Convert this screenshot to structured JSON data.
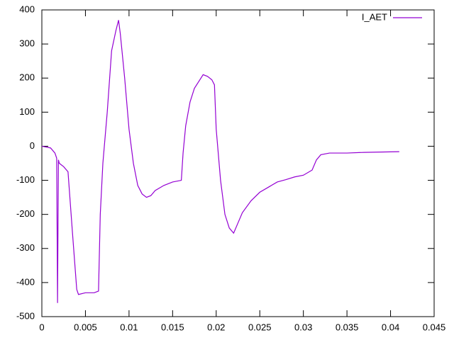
{
  "chart_data": {
    "type": "line",
    "x": [
      0,
      0.001,
      0.0015,
      0.0017,
      0.0018,
      0.0019,
      0.002,
      0.0025,
      0.003,
      0.0035,
      0.004,
      0.0042,
      0.005,
      0.006,
      0.0065,
      0.0067,
      0.007,
      0.0075,
      0.008,
      0.0085,
      0.0088,
      0.009,
      0.0095,
      0.01,
      0.0105,
      0.011,
      0.0115,
      0.012,
      0.0125,
      0.013,
      0.014,
      0.015,
      0.016,
      0.0162,
      0.0165,
      0.017,
      0.0175,
      0.018,
      0.0185,
      0.019,
      0.0195,
      0.0198,
      0.02,
      0.0205,
      0.021,
      0.0215,
      0.022,
      0.0225,
      0.023,
      0.024,
      0.025,
      0.026,
      0.027,
      0.028,
      0.029,
      0.03,
      0.031,
      0.0315,
      0.032,
      0.033,
      0.035,
      0.037,
      0.039,
      0.041
    ],
    "series": [
      {
        "name": "I_AET",
        "color": "#9400d3",
        "values": [
          0,
          -5,
          -20,
          -35,
          -460,
          -40,
          -50,
          -60,
          -75,
          -250,
          -420,
          -435,
          -430,
          -430,
          -425,
          -200,
          -50,
          100,
          280,
          340,
          370,
          330,
          200,
          50,
          -50,
          -115,
          -140,
          -150,
          -145,
          -130,
          -115,
          -105,
          -100,
          -20,
          60,
          130,
          170,
          190,
          210,
          205,
          195,
          180,
          50,
          -100,
          -200,
          -240,
          -255,
          -225,
          -195,
          -160,
          -135,
          -120,
          -105,
          -98,
          -90,
          -85,
          -70,
          -40,
          -25,
          -20,
          -20,
          -18,
          -17,
          -16
        ]
      }
    ],
    "xlim": [
      0,
      0.045
    ],
    "xticks": [
      0,
      0.005,
      0.01,
      0.015,
      0.02,
      0.025,
      0.03,
      0.035,
      0.04,
      0.045
    ],
    "ylim": [
      -500,
      400
    ],
    "yticks": [
      -500,
      -400,
      -300,
      -200,
      -100,
      0,
      100,
      200,
      300,
      400
    ],
    "legend": "top-right"
  }
}
